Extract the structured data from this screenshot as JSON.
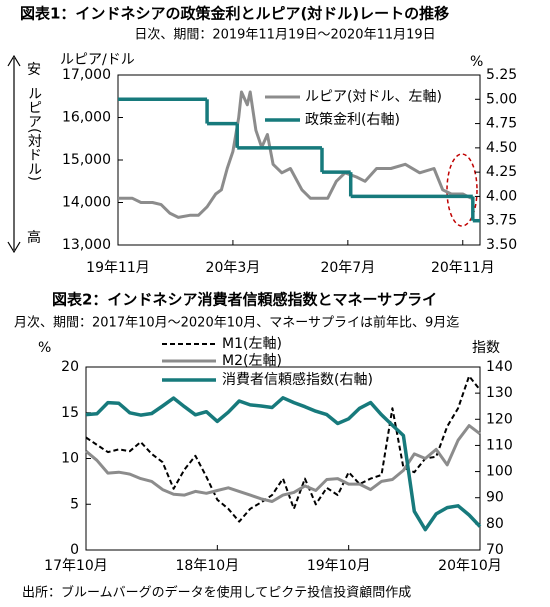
{
  "chart_data": [
    {
      "type": "line",
      "title": "図表1：インドネシアの政策金利とルピア(対ドル)レートの推移",
      "subtitle": "日次、期間：2019年11月19日～2020年11月19日",
      "ylabel": "ルピア/ドル",
      "y2label": "%",
      "side_labels": {
        "top": "安",
        "middle": "ルピア(対ドル)",
        "bottom": "高"
      },
      "xlim": [
        0,
        12.6
      ],
      "xticks": [
        {
          "value": 0,
          "label": "19年11月"
        },
        {
          "value": 4,
          "label": "20年3月"
        },
        {
          "value": 8,
          "label": "20年7月"
        },
        {
          "value": 12,
          "label": "20年11月"
        }
      ],
      "ylim": [
        13000,
        17000
      ],
      "yticks": [
        {
          "value": 13000,
          "label": "13,000"
        },
        {
          "value": 14000,
          "label": "14,000"
        },
        {
          "value": 15000,
          "label": "15,000"
        },
        {
          "value": 16000,
          "label": "16,000"
        },
        {
          "value": 17000,
          "label": "17,000"
        }
      ],
      "y2lim": [
        3.5,
        5.25
      ],
      "y2ticks": [
        {
          "value": 3.5,
          "label": "3.50"
        },
        3.75,
        {
          "value": 4,
          "label": "4.00"
        },
        4.25,
        {
          "value": 4.5,
          "label": "4.50"
        },
        4.75,
        {
          "value": 5,
          "label": "5.00"
        },
        5.25
      ],
      "series": [
        {
          "name": "ルピア(対ドル、左軸)",
          "color": "#8c8c8c",
          "x": [
            0,
            0.5,
            0.8,
            1.2,
            1.5,
            1.8,
            2.1,
            2.5,
            2.8,
            3.1,
            3.4,
            3.6,
            3.8,
            4.0,
            4.2,
            4.3,
            4.5,
            4.6,
            4.8,
            5.0,
            5.2,
            5.4,
            5.7,
            6.0,
            6.4,
            6.7,
            7.0,
            7.3,
            7.6,
            7.9,
            8.3,
            8.6,
            9.0,
            9.5,
            10.0,
            10.5,
            11.0,
            11.3,
            11.6,
            12.0,
            12.3
          ],
          "values": [
            14100,
            14100,
            14000,
            14000,
            13950,
            13750,
            13650,
            13700,
            13700,
            13900,
            14200,
            14300,
            14800,
            15200,
            16000,
            16600,
            16300,
            16600,
            15700,
            15300,
            15600,
            14900,
            14700,
            14800,
            14300,
            14100,
            14100,
            14100,
            14500,
            14700,
            14600,
            14500,
            14800,
            14800,
            14900,
            14700,
            14800,
            14300,
            14200,
            14200,
            14100
          ]
        },
        {
          "name": "政策金利(右軸)",
          "color": "#177a7c",
          "axis": "y2",
          "step": true,
          "x": [
            0,
            3.1,
            4.15,
            7.1,
            8.1,
            12.35
          ],
          "values": [
            5,
            4.75,
            4.5,
            4.25,
            4,
            3.75
          ]
        }
      ]
    },
    {
      "type": "line",
      "title": "図表2：インドネシア消費者信頼感指数とマネーサプライ",
      "subtitle": "月次、期間：2017年10月～2020年10月、マネーサプライは前年比、9月迄",
      "ylabel": "%",
      "y2label": "指数",
      "categories": [
        "17年10月",
        null,
        null,
        null,
        null,
        null,
        null,
        null,
        null,
        null,
        null,
        null,
        "18年10月",
        null,
        null,
        null,
        null,
        null,
        null,
        null,
        null,
        null,
        null,
        null,
        "19年10月",
        null,
        null,
        null,
        null,
        null,
        null,
        null,
        null,
        null,
        null,
        null,
        "20年10月"
      ],
      "ylim": [
        0,
        20
      ],
      "yticks": [
        0,
        5,
        10,
        15,
        20
      ],
      "y2lim": [
        70,
        140
      ],
      "y2ticks": [
        70,
        80,
        90,
        100,
        110,
        120,
        130,
        140
      ],
      "series": [
        {
          "name": "M1(左軸)",
          "color": "#000000",
          "dashed": true,
          "values": [
            12.3,
            11.5,
            10.7,
            11.0,
            10.8,
            11.8,
            10.5,
            9.6,
            6.7,
            8.8,
            10.3,
            8.0,
            5.5,
            4.5,
            3.1,
            4.5,
            5.2,
            6.0,
            7.8,
            4.5,
            7.8,
            5.0,
            6.8,
            6.0,
            8.5,
            7.2,
            7.8,
            8.2,
            15.5,
            9.0,
            8.5,
            10.0,
            10.2,
            13.5,
            15.5,
            19.0,
            17.5
          ]
        },
        {
          "name": "M2(左軸)",
          "color": "#8c8c8c",
          "values": [
            10.8,
            9.8,
            8.4,
            8.5,
            8.3,
            7.8,
            7.5,
            6.6,
            6.1,
            6.0,
            6.4,
            6.2,
            6.5,
            6.8,
            6.4,
            6.0,
            5.6,
            5.3,
            6.0,
            6.3,
            7.0,
            6.5,
            7.7,
            7.8,
            7.2,
            7.2,
            6.6,
            7.5,
            7.7,
            8.7,
            10.5,
            10.0,
            11.0,
            9.3,
            12.0,
            13.6,
            12.7
          ]
        },
        {
          "name": "消費者信頼感指数(右軸)",
          "color": "#177a7c",
          "axis": "y2",
          "values": [
            121.8,
            122.1,
            126.4,
            126.1,
            122.5,
            121.6,
            122.2,
            125.1,
            128.1,
            124.8,
            121.7,
            122.9,
            119.2,
            122.7,
            127.0,
            125.5,
            125.1,
            124.5,
            128.2,
            126.4,
            124.8,
            123.1,
            121.8,
            118.4,
            120.2,
            124.2,
            126.4,
            121.7,
            117.7,
            113.8,
            84.8,
            77.8,
            83.8,
            86.2,
            86.9,
            83.4,
            79.0
          ]
        }
      ]
    }
  ],
  "source": "出所：ブルームバーグのデータを使用してピクテ投信投資顧問作成"
}
